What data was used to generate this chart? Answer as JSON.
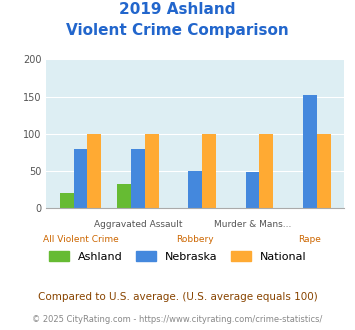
{
  "title_line1": "2019 Ashland",
  "title_line2": "Violent Crime Comparison",
  "title_color": "#2266cc",
  "categories": [
    "All Violent Crime",
    "Aggravated Assault",
    "Robbery",
    "Murder & Mans...",
    "Rape"
  ],
  "cats_top": [
    "",
    "Aggravated Assault",
    "",
    "Murder & Mans...",
    ""
  ],
  "cats_bottom": [
    "All Violent Crime",
    "",
    "Robbery",
    "",
    "Rape"
  ],
  "ashland_values": [
    20,
    32,
    0,
    0,
    0
  ],
  "nebraska_values": [
    80,
    79,
    50,
    48,
    152
  ],
  "national_values": [
    100,
    100,
    100,
    100,
    100
  ],
  "ashland_color": "#66bb33",
  "nebraska_color": "#4488dd",
  "national_color": "#ffaa33",
  "ylim": [
    0,
    200
  ],
  "yticks": [
    0,
    50,
    100,
    150,
    200
  ],
  "plot_bg": "#ddeef3",
  "fig_bg": "#ffffff",
  "legend_labels": [
    "Ashland",
    "Nebraska",
    "National"
  ],
  "footnote1": "Compared to U.S. average. (U.S. average equals 100)",
  "footnote2": "© 2025 CityRating.com - https://www.cityrating.com/crime-statistics/",
  "footnote1_color": "#884400",
  "footnote2_color": "#888888",
  "top_label_color": "#555555",
  "bottom_label_color": "#cc6600"
}
